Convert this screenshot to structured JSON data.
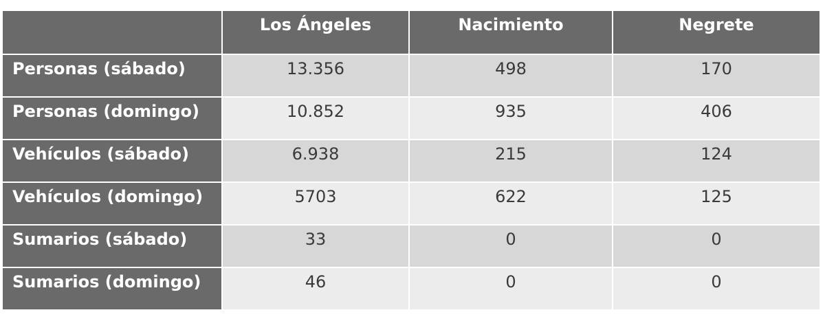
{
  "table": {
    "columns": [
      "Los Ángeles",
      "Nacimiento",
      "Negrete"
    ],
    "rows": [
      {
        "label": "Personas (sábado)",
        "values": [
          "13.356",
          "498",
          "170"
        ]
      },
      {
        "label": "Personas (domingo)",
        "values": [
          "10.852",
          "935",
          "406"
        ]
      },
      {
        "label": "Vehículos (sábado)",
        "values": [
          "6.938",
          "215",
          "124"
        ]
      },
      {
        "label": "Vehículos (domingo)",
        "values": [
          "5703",
          "622",
          "125"
        ]
      },
      {
        "label": "Sumarios (sábado)",
        "values": [
          "33",
          "0",
          "0"
        ]
      },
      {
        "label": "Sumarios (domingo)",
        "values": [
          "46",
          "0",
          "0"
        ]
      }
    ]
  },
  "colors": {
    "header_bg": "#6a6a6a",
    "row_odd_bg": "#d7d7d7",
    "row_even_bg": "#ececec",
    "header_text": "#ffffff",
    "cell_text": "#3a3a3a"
  }
}
